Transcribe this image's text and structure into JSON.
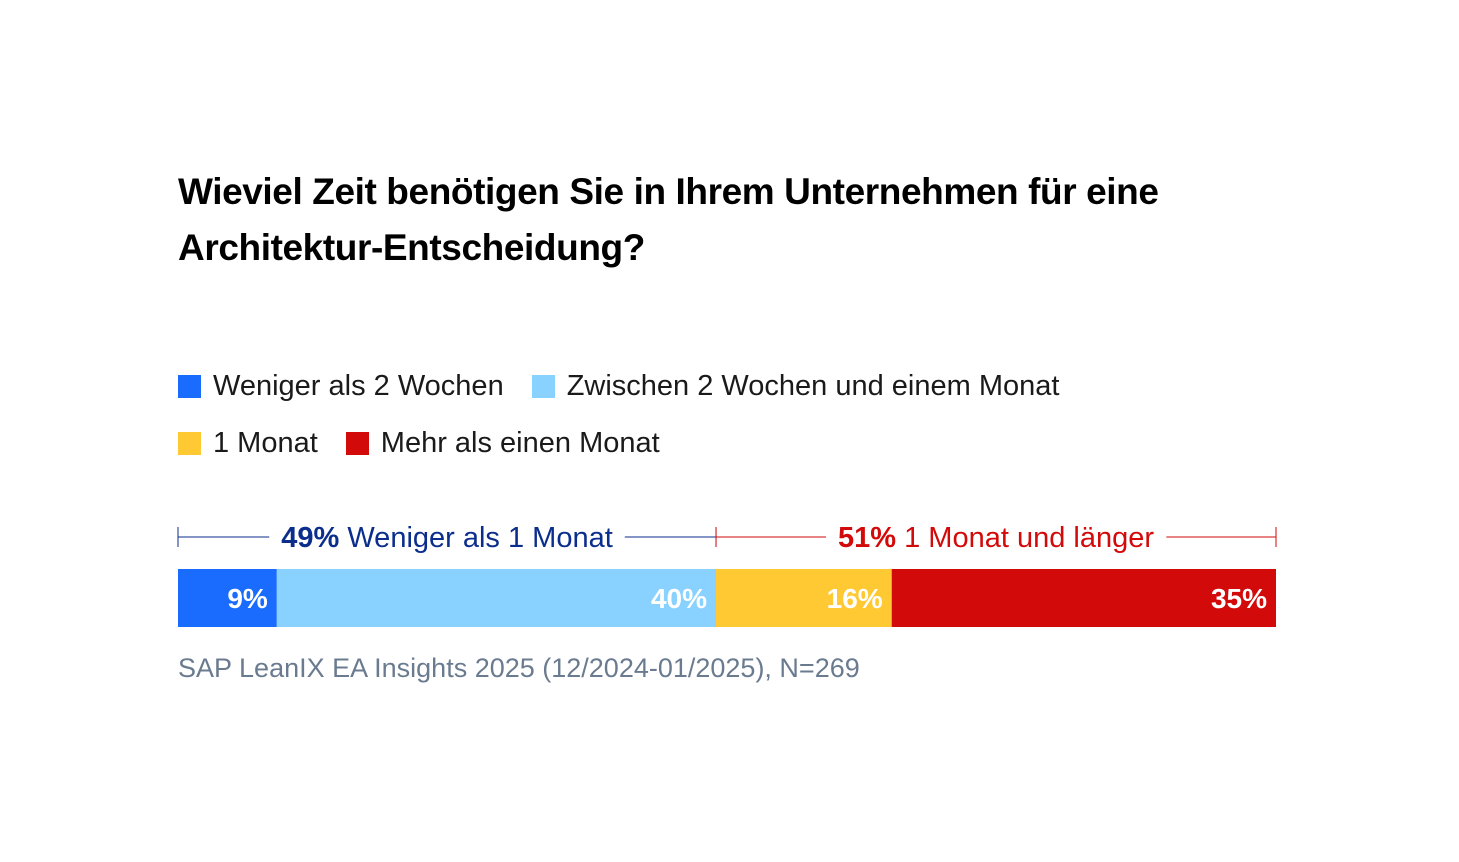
{
  "title": "Wieviel Zeit benötigen Sie in Ihrem Unternehmen für eine Architektur-Entscheidung?",
  "legend": {
    "rows": [
      [
        {
          "label": "Weniger als 2 Wochen",
          "color": "#1a6cff"
        },
        {
          "label": "Zwischen 2 Wochen und einem Monat",
          "color": "#89d1ff"
        }
      ],
      [
        {
          "label": "1 Monat",
          "color": "#ffc933"
        },
        {
          "label": "Mehr als einen Monat",
          "color": "#d20a0a"
        }
      ]
    ]
  },
  "chart_data": {
    "type": "bar",
    "orientation": "horizontal-stacked-100",
    "series": [
      {
        "name": "Weniger als 2 Wochen",
        "value": 9,
        "label": "9%",
        "color": "#1a6cff"
      },
      {
        "name": "Zwischen 2 Wochen und einem Monat",
        "value": 40,
        "label": "40%",
        "color": "#89d1ff"
      },
      {
        "name": "1 Monat",
        "value": 16,
        "label": "16%",
        "color": "#ffc933"
      },
      {
        "name": "Mehr als einen Monat",
        "value": 35,
        "label": "35%",
        "color": "#d20a0a"
      }
    ],
    "groups": [
      {
        "percent": "49%",
        "text": "Weniger als 1 Monat",
        "from": 0,
        "to": 49,
        "color": "#0b2d8c"
      },
      {
        "percent": "51%",
        "text": "1 Monat und länger",
        "from": 49,
        "to": 100,
        "color": "#d20a0a"
      }
    ],
    "value_label_color": "#ffffff"
  },
  "source": "SAP LeanIX EA Insights 2025 (12/2024-01/2025), N=269"
}
